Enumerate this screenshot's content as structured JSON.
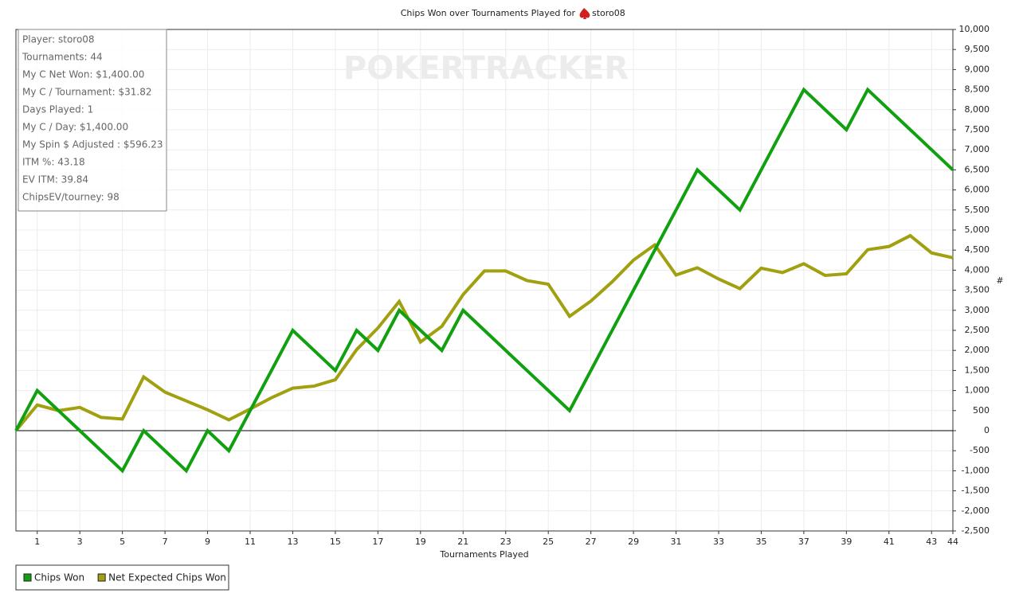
{
  "chart_data": {
    "type": "line",
    "title": "Chips Won over Tournaments Played for",
    "title_player": "storo08",
    "watermark": "POKERTRACKER",
    "xlabel": "Tournaments Played",
    "ylabel": "#",
    "x": [
      0,
      1,
      2,
      3,
      4,
      5,
      6,
      7,
      8,
      9,
      10,
      11,
      12,
      13,
      14,
      15,
      16,
      17,
      18,
      19,
      20,
      21,
      22,
      23,
      24,
      25,
      26,
      27,
      28,
      29,
      30,
      31,
      32,
      33,
      34,
      35,
      36,
      37,
      38,
      39,
      40,
      41,
      42,
      43,
      44
    ],
    "series": [
      {
        "name": "Chips Won",
        "color": "#10a010",
        "values": [
          0,
          1000,
          500,
          0,
          -500,
          -1000,
          0,
          -500,
          -1000,
          0,
          -500,
          500,
          1500,
          2500,
          2000,
          1500,
          2500,
          2000,
          3000,
          2500,
          2000,
          3000,
          2500,
          2000,
          1500,
          1000,
          500,
          1500,
          2500,
          3500,
          4500,
          5500,
          6500,
          6000,
          5500,
          6500,
          7500,
          8500,
          8000,
          7500,
          8500,
          8000,
          7500,
          7000,
          6500
        ]
      },
      {
        "name": "Net Expected Chips Won",
        "color": "#a0a010",
        "values": [
          0,
          640,
          500,
          580,
          330,
          290,
          1340,
          960,
          740,
          520,
          270,
          540,
          820,
          1060,
          1110,
          1270,
          2020,
          2560,
          3220,
          2210,
          2600,
          3390,
          3980,
          3980,
          3740,
          3650,
          2850,
          3230,
          3710,
          4250,
          4630,
          3880,
          4060,
          3780,
          3540,
          4050,
          3940,
          4160,
          3870,
          3910,
          4510,
          4590,
          4860,
          4430,
          4310
        ]
      }
    ],
    "xlim": [
      0,
      44
    ],
    "xticks": [
      1,
      3,
      5,
      7,
      9,
      11,
      13,
      15,
      17,
      19,
      21,
      23,
      25,
      27,
      29,
      31,
      33,
      35,
      37,
      39,
      41,
      43,
      44
    ],
    "ylim": [
      -2500,
      10000
    ],
    "yticks": [
      {
        "value": -2500,
        "label": "-2,500"
      },
      {
        "value": -2000,
        "label": "-2,000"
      },
      {
        "value": -1500,
        "label": "-1,500"
      },
      {
        "value": -1000,
        "label": "-1,000"
      },
      -500,
      0,
      500,
      {
        "value": 1000,
        "label": "1,000"
      },
      {
        "value": 1500,
        "label": "1,500"
      },
      {
        "value": 2000,
        "label": "2,000"
      },
      {
        "value": 2500,
        "label": "2,500"
      },
      {
        "value": 3000,
        "label": "3,000"
      },
      {
        "value": 3500,
        "label": "3,500"
      },
      {
        "value": 4000,
        "label": "4,000"
      },
      {
        "value": 4500,
        "label": "4,500"
      },
      {
        "value": 5000,
        "label": "5,000"
      },
      {
        "value": 5500,
        "label": "5,500"
      },
      {
        "value": 6000,
        "label": "6,000"
      },
      {
        "value": 6500,
        "label": "6,500"
      },
      {
        "value": 7000,
        "label": "7,000"
      },
      {
        "value": 7500,
        "label": "7,500"
      },
      {
        "value": 8000,
        "label": "8,000"
      },
      {
        "value": 8500,
        "label": "8,500"
      },
      {
        "value": 9000,
        "label": "9,000"
      },
      {
        "value": 9500,
        "label": "9,500"
      },
      {
        "value": 10000,
        "label": "10,000"
      }
    ],
    "grid": true,
    "stats": [
      "Player: storo08",
      "Tournaments: 44",
      "My C Net Won: $1,400.00",
      "My C / Tournament: $31.82",
      "Days Played: 1",
      "My C / Day: $1,400.00",
      "My Spin $ Adjusted : $596.23",
      "ITM %: 43.18",
      "EV ITM: 39.84",
      "ChipsEV/tourney: 98"
    ]
  }
}
